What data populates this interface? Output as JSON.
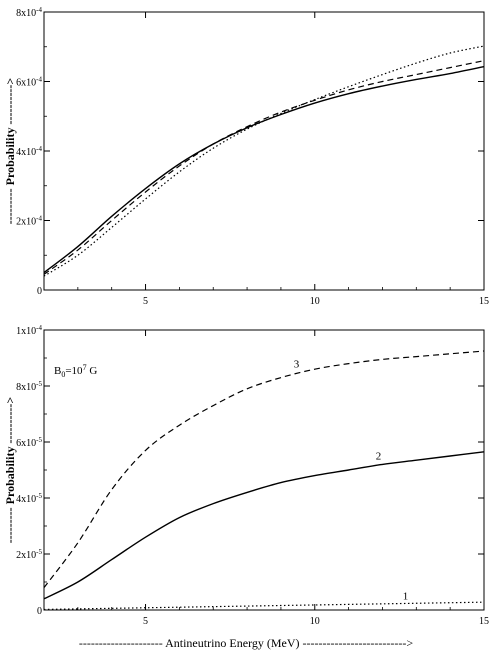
{
  "chart_data": [
    {
      "type": "line",
      "xlabel": "",
      "ylabel": "--------- Probability ---------->",
      "xlim": [
        2,
        15
      ],
      "ylim": [
        0,
        0.0008
      ],
      "x_ticks": [
        "5",
        "10",
        "15"
      ],
      "y_ticks": [
        "0",
        "2x10",
        "4x10",
        "6x10",
        "8x10"
      ],
      "y_tick_exponent": "-4",
      "series": [
        {
          "style": "solid",
          "x": [
            2,
            3,
            4,
            5,
            6,
            7,
            8,
            9,
            10,
            11,
            12,
            13,
            14,
            15
          ],
          "y": [
            5e-05,
            0.000125,
            0.000212,
            0.000292,
            0.000363,
            0.00042,
            0.000467,
            0.000505,
            0.000538,
            0.000565,
            0.000587,
            0.000606,
            0.000623,
            0.000643
          ]
        },
        {
          "style": "dashed",
          "x": [
            2,
            3,
            4,
            5,
            6,
            7,
            8,
            9,
            10,
            11,
            12,
            13,
            14,
            15
          ],
          "y": [
            4.5e-05,
            0.000115,
            0.0002,
            0.000282,
            0.000357,
            0.00042,
            0.00047,
            0.000512,
            0.000546,
            0.000576,
            0.0006,
            0.00062,
            0.00064,
            0.00066
          ]
        },
        {
          "style": "dotted",
          "x": [
            2,
            3,
            4,
            5,
            6,
            7,
            8,
            9,
            10,
            11,
            12,
            13,
            14,
            15
          ],
          "y": [
            4e-05,
            0.0001,
            0.00018,
            0.000262,
            0.00034,
            0.000408,
            0.000463,
            0.000508,
            0.000548,
            0.000585,
            0.00062,
            0.000653,
            0.000682,
            0.000702
          ]
        }
      ]
    },
    {
      "type": "line",
      "xlabel": "--------------------- Antineutrino Energy (MeV) -------------------------->",
      "ylabel": "--------- Probability ---------->",
      "xlim": [
        2,
        15
      ],
      "ylim": [
        0,
        0.0001
      ],
      "x_ticks": [
        "5",
        "10",
        "15"
      ],
      "y_ticks": [
        "0",
        "2x10",
        "4x10",
        "6x10",
        "8x10",
        "1x10"
      ],
      "y_tick_exponents": [
        "",
        "-5",
        "-5",
        "-5",
        "-5",
        "-4"
      ],
      "annotation": {
        "text": "B",
        "sub": "0",
        "mid": "=10",
        "sup": "7",
        "tail": " G"
      },
      "series": [
        {
          "name": "3",
          "style": "dashed",
          "x": [
            2,
            3,
            4,
            5,
            6,
            7,
            8,
            9,
            10,
            11,
            12,
            13,
            14,
            15
          ],
          "y": [
            8e-06,
            2.4e-05,
            4.3e-05,
            5.7e-05,
            6.6e-05,
            7.3e-05,
            7.9e-05,
            8.3e-05,
            8.6e-05,
            8.8e-05,
            8.95e-05,
            9.05e-05,
            9.15e-05,
            9.25e-05
          ]
        },
        {
          "name": "2",
          "style": "solid",
          "x": [
            2,
            3,
            4,
            5,
            6,
            7,
            8,
            9,
            10,
            11,
            12,
            13,
            14,
            15
          ],
          "y": [
            4e-06,
            1e-05,
            1.8e-05,
            2.6e-05,
            3.3e-05,
            3.8e-05,
            4.2e-05,
            4.55e-05,
            4.8e-05,
            5e-05,
            5.2e-05,
            5.35e-05,
            5.5e-05,
            5.65e-05
          ]
        },
        {
          "name": "1",
          "style": "dotted",
          "x": [
            2,
            3,
            4,
            5,
            6,
            7,
            8,
            9,
            10,
            11,
            12,
            13,
            14,
            15
          ],
          "y": [
            2e-07,
            4e-07,
            6e-07,
            8e-07,
            1e-06,
            1.2e-06,
            1.4e-06,
            1.6e-06,
            1.8e-06,
            2e-06,
            2.2e-06,
            2.4e-06,
            2.6e-06,
            2.8e-06
          ]
        }
      ]
    }
  ]
}
